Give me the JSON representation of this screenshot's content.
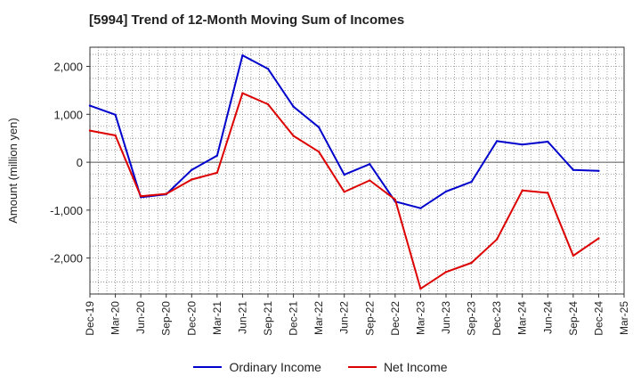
{
  "chart_data": {
    "type": "line",
    "title": "[5994]  Trend of 12-Month Moving Sum of Incomes",
    "ylabel": "Amount (million yen)",
    "xlabel": "",
    "ylim": [
      -2750,
      2400
    ],
    "yticks": [
      2000,
      1000,
      0,
      -1000,
      -2000
    ],
    "ytick_labels": [
      "2,000",
      "1,000",
      "0",
      "-1,000",
      "-2,000"
    ],
    "categories": [
      "Dec-19",
      "Mar-20",
      "Jun-20",
      "Sep-20",
      "Dec-20",
      "Mar-21",
      "Jun-21",
      "Sep-21",
      "Dec-21",
      "Mar-22",
      "Jun-22",
      "Sep-22",
      "Dec-22",
      "Mar-23",
      "Jun-23",
      "Sep-23",
      "Dec-23",
      "Mar-24",
      "Jun-24",
      "Sep-24",
      "Dec-24",
      "Mar-25"
    ],
    "grid": true,
    "legend_position": "bottom",
    "series": [
      {
        "name": "Ordinary Income",
        "color": "#0000cc",
        "values": [
          1180,
          990,
          -730,
          -670,
          -160,
          140,
          2230,
          1950,
          1160,
          730,
          -260,
          -40,
          -820,
          -960,
          -610,
          -410,
          440,
          370,
          430,
          -160,
          -180,
          null
        ]
      },
      {
        "name": "Net Income",
        "color": "#dd0000",
        "values": [
          660,
          560,
          -710,
          -660,
          -360,
          -220,
          1440,
          1210,
          550,
          220,
          -620,
          -380,
          -780,
          -2640,
          -2290,
          -2100,
          -1610,
          -590,
          -640,
          -1950,
          -1590,
          null
        ]
      }
    ]
  }
}
